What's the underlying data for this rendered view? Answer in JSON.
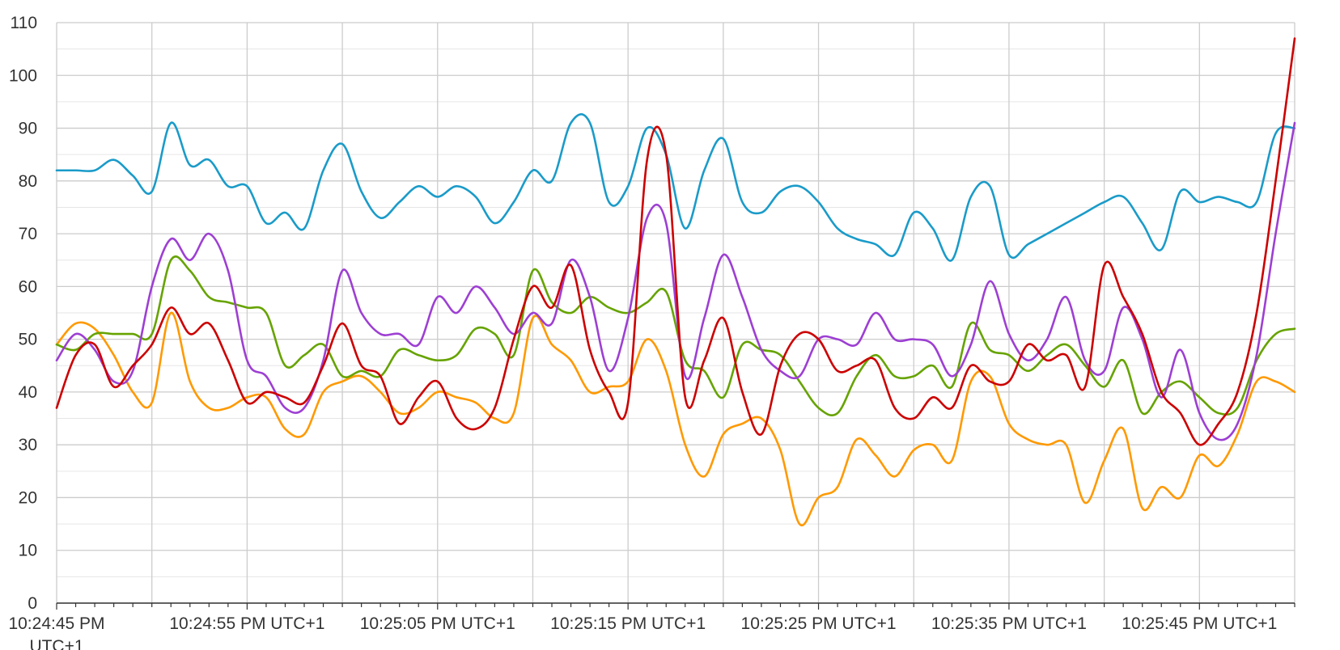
{
  "chart_data": {
    "type": "line",
    "xlabel": "",
    "ylabel": "",
    "ylim": [
      0,
      110
    ],
    "y_ticks": [
      0,
      10,
      20,
      30,
      40,
      50,
      60,
      70,
      80,
      90,
      100,
      110
    ],
    "x_time_range": [
      "10:24:45 PM",
      "10:25:50 PM"
    ],
    "x_tick_labels": [
      "10:24:45 PM UTC+1",
      "10:24:55 PM UTC+1",
      "10:25:05 PM UTC+1",
      "10:25:15 PM UTC+1",
      "10:25:25 PM UTC+1",
      "10:25:35 PM UTC+1",
      "10:25:45 PM UTC+1"
    ],
    "grid": true,
    "legend": "none",
    "x": [
      "10:24:45 PM",
      "10:24:46 PM",
      "10:24:47 PM",
      "10:24:48 PM",
      "10:24:49 PM",
      "10:24:50 PM",
      "10:24:51 PM",
      "10:24:52 PM",
      "10:24:53 PM",
      "10:24:54 PM",
      "10:24:55 PM",
      "10:24:56 PM",
      "10:24:57 PM",
      "10:24:58 PM",
      "10:24:59 PM",
      "10:25:00 PM",
      "10:25:01 PM",
      "10:25:02 PM",
      "10:25:03 PM",
      "10:25:04 PM",
      "10:25:05 PM",
      "10:25:06 PM",
      "10:25:07 PM",
      "10:25:08 PM",
      "10:25:09 PM",
      "10:25:10 PM",
      "10:25:11 PM",
      "10:25:12 PM",
      "10:25:13 PM",
      "10:25:14 PM",
      "10:25:15 PM",
      "10:25:16 PM",
      "10:25:17 PM",
      "10:25:18 PM",
      "10:25:19 PM",
      "10:25:20 PM",
      "10:25:21 PM",
      "10:25:22 PM",
      "10:25:23 PM",
      "10:25:24 PM",
      "10:25:25 PM",
      "10:25:26 PM",
      "10:25:27 PM",
      "10:25:28 PM",
      "10:25:29 PM",
      "10:25:30 PM",
      "10:25:31 PM",
      "10:25:32 PM",
      "10:25:33 PM",
      "10:25:34 PM",
      "10:25:35 PM",
      "10:25:36 PM",
      "10:25:37 PM",
      "10:25:38 PM",
      "10:25:39 PM",
      "10:25:40 PM",
      "10:25:41 PM",
      "10:25:42 PM",
      "10:25:43 PM",
      "10:25:44 PM",
      "10:25:45 PM",
      "10:25:46 PM",
      "10:25:47 PM",
      "10:25:48 PM",
      "10:25:49 PM",
      "10:25:50 PM"
    ],
    "series": [
      {
        "color": "#1a9bc9",
        "values": [
          82,
          82,
          82,
          84,
          81,
          78,
          91,
          83,
          84,
          79,
          79,
          72,
          74,
          71,
          82,
          87,
          78,
          73,
          76,
          79,
          77,
          79,
          77,
          72,
          76,
          82,
          80,
          91,
          91,
          76,
          79,
          90,
          85,
          71,
          82,
          88,
          76,
          74,
          78,
          79,
          76,
          71,
          69,
          68,
          66,
          74,
          71,
          65,
          77,
          79,
          66,
          68,
          70,
          72,
          74,
          76,
          77,
          72,
          67,
          78,
          76,
          77,
          76,
          76,
          89,
          90
        ]
      },
      {
        "color": "#cc0000",
        "values": [
          37,
          47,
          49,
          41,
          45,
          49,
          56,
          51,
          53,
          46,
          38,
          40,
          39,
          38,
          45,
          53,
          45,
          43,
          34,
          39,
          42,
          35,
          33,
          37,
          50,
          60,
          56,
          64,
          48,
          40,
          38,
          84,
          85,
          39,
          46,
          54,
          40,
          32,
          45,
          51,
          50,
          44,
          45,
          46,
          37,
          35,
          39,
          37,
          45,
          42,
          42,
          49,
          46,
          47,
          41,
          64,
          58,
          51,
          40,
          36,
          30,
          34,
          40,
          55,
          80,
          107
        ]
      },
      {
        "color": "#ff9900",
        "values": [
          49,
          53,
          52,
          47,
          40,
          38,
          55,
          42,
          37,
          37,
          39,
          39,
          33,
          32,
          40,
          42,
          43,
          40,
          36,
          37,
          40,
          39,
          38,
          35,
          36,
          54,
          49,
          46,
          40,
          41,
          42,
          50,
          44,
          30,
          24,
          32,
          34,
          35,
          29,
          15,
          20,
          22,
          31,
          28,
          24,
          29,
          30,
          27,
          42,
          43,
          34,
          31,
          30,
          30,
          19,
          27,
          33,
          18,
          22,
          20,
          28,
          26,
          32,
          42,
          42,
          40
        ]
      },
      {
        "color": "#66a300",
        "values": [
          49,
          48,
          51,
          51,
          51,
          51,
          65,
          63,
          58,
          57,
          56,
          55,
          45,
          47,
          49,
          43,
          44,
          43,
          48,
          47,
          46,
          47,
          52,
          51,
          47,
          63,
          57,
          55,
          58,
          56,
          55,
          57,
          59,
          46,
          44,
          39,
          49,
          48,
          47,
          42,
          37,
          36,
          43,
          47,
          43,
          43,
          45,
          41,
          53,
          48,
          47,
          44,
          47,
          49,
          45,
          41,
          46,
          36,
          40,
          42,
          39,
          36,
          37,
          46,
          51,
          52
        ]
      },
      {
        "color": "#9d3fd3",
        "values": [
          46,
          51,
          48,
          42,
          44,
          60,
          69,
          65,
          70,
          63,
          46,
          43,
          37,
          37,
          46,
          63,
          55,
          51,
          51,
          49,
          58,
          55,
          60,
          56,
          51,
          55,
          53,
          65,
          58,
          44,
          54,
          73,
          72,
          43,
          54,
          66,
          58,
          48,
          44,
          43,
          50,
          50,
          49,
          55,
          50,
          50,
          49,
          43,
          49,
          61,
          51,
          46,
          50,
          58,
          46,
          44,
          56,
          50,
          39,
          48,
          36,
          31,
          34,
          47,
          70,
          91
        ]
      }
    ]
  }
}
